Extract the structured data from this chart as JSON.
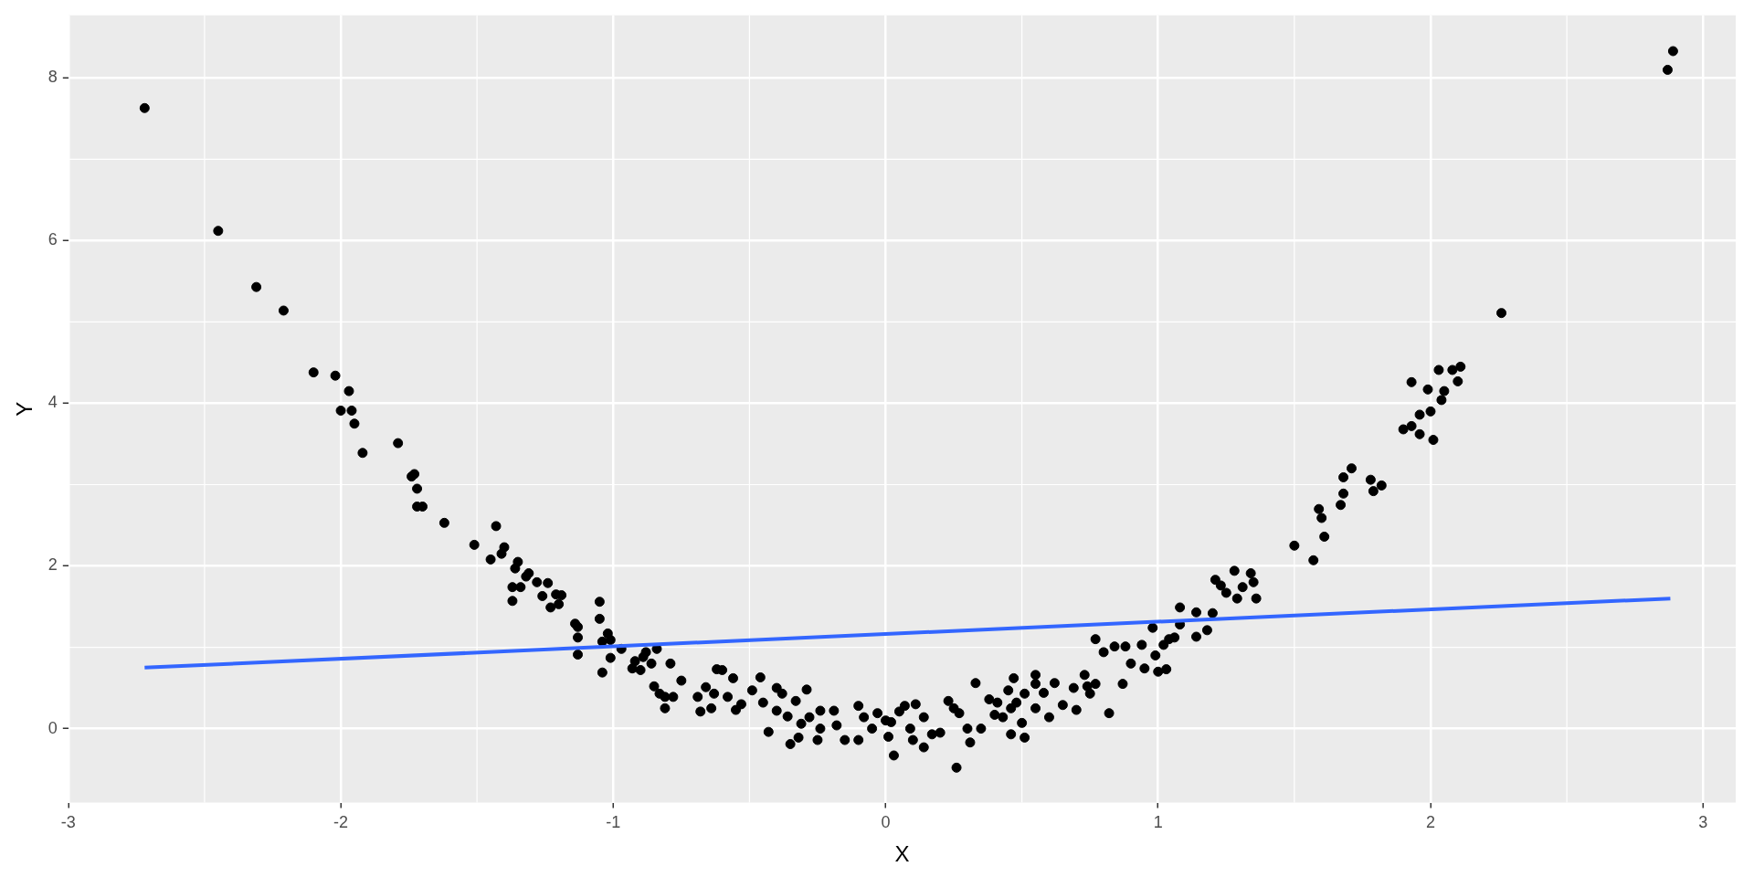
{
  "chart_data": {
    "type": "scatter",
    "xlabel": "X",
    "ylabel": "Y",
    "xlim": [
      -3.0,
      3.12
    ],
    "ylim": [
      -0.91,
      8.77
    ],
    "xticks": [
      -3,
      -2,
      -1,
      0,
      1,
      2,
      3
    ],
    "yticks": [
      0,
      2,
      4,
      6,
      8
    ],
    "grid": true,
    "legend": false,
    "series": [
      {
        "marker": "circle",
        "color": "#000000",
        "x": [
          -2.72,
          -2.45,
          -2.31,
          -2.21,
          -2.1,
          -2.02,
          -2.0,
          -1.97,
          -1.96,
          -1.95,
          -1.92,
          -1.79,
          -1.74,
          -1.73,
          -1.72,
          -1.72,
          -1.7,
          -1.62,
          -1.51,
          -1.45,
          -1.43,
          -1.41,
          -1.4,
          -1.37,
          -1.37,
          -1.36,
          -1.35,
          -1.34,
          -1.32,
          -1.31,
          -1.28,
          -1.26,
          -1.24,
          -1.23,
          -1.21,
          -1.2,
          -1.19,
          -1.14,
          -1.13,
          -1.13,
          -1.13,
          -1.05,
          -1.05,
          -1.04,
          -1.04,
          -1.02,
          -1.01,
          -1.01,
          -0.97,
          -0.93,
          -0.92,
          -0.9,
          -0.89,
          -0.88,
          -0.86,
          -0.84,
          -0.85,
          -0.83,
          -0.81,
          -0.81,
          -0.79,
          -0.78,
          -0.75,
          -0.69,
          -0.68,
          -0.66,
          -0.64,
          -0.63,
          -0.62,
          -0.6,
          -0.58,
          -0.56,
          -0.55,
          -0.53,
          -0.49,
          -0.46,
          -0.45,
          -0.43,
          -0.4,
          -0.4,
          -0.38,
          -0.36,
          -0.35,
          -0.33,
          -0.32,
          -0.31,
          -0.29,
          -0.28,
          -0.25,
          -0.24,
          -0.24,
          -0.19,
          -0.18,
          -0.15,
          -0.1,
          -0.1,
          -0.08,
          -0.05,
          -0.03,
          0.0,
          0.01,
          0.02,
          0.03,
          0.05,
          0.07,
          0.09,
          0.1,
          0.11,
          0.14,
          0.14,
          0.17,
          0.2,
          0.23,
          0.25,
          0.26,
          0.27,
          0.3,
          0.31,
          0.33,
          0.35,
          0.38,
          0.4,
          0.41,
          0.43,
          0.45,
          0.46,
          0.47,
          0.46,
          0.48,
          0.5,
          0.51,
          0.51,
          0.55,
          0.55,
          0.55,
          0.58,
          0.6,
          0.62,
          0.65,
          0.69,
          0.7,
          0.73,
          0.74,
          0.75,
          0.77,
          0.77,
          0.8,
          0.82,
          0.84,
          0.87,
          0.88,
          0.9,
          0.94,
          0.95,
          0.98,
          0.99,
          1.0,
          1.02,
          1.03,
          1.04,
          1.06,
          1.08,
          1.08,
          1.14,
          1.14,
          1.18,
          1.2,
          1.21,
          1.23,
          1.25,
          1.28,
          1.29,
          1.31,
          1.34,
          1.35,
          1.36,
          1.5,
          1.57,
          1.59,
          1.6,
          1.61,
          1.67,
          1.68,
          1.68,
          1.71,
          1.78,
          1.79,
          1.82,
          1.9,
          1.93,
          1.93,
          1.96,
          1.96,
          1.99,
          2.0,
          2.01,
          2.03,
          2.04,
          2.05,
          2.08,
          2.1,
          2.11,
          2.26,
          2.87,
          2.89
        ],
        "values": [
          7.63,
          6.12,
          5.43,
          5.14,
          4.38,
          4.34,
          3.91,
          4.15,
          3.91,
          3.75,
          3.39,
          3.51,
          3.1,
          3.13,
          2.95,
          2.73,
          2.73,
          2.53,
          2.26,
          2.08,
          2.49,
          2.15,
          2.23,
          1.74,
          1.57,
          1.97,
          2.05,
          1.74,
          1.87,
          1.91,
          1.8,
          1.63,
          1.79,
          1.49,
          1.65,
          1.53,
          1.64,
          1.29,
          1.25,
          1.12,
          0.91,
          1.56,
          1.35,
          1.07,
          0.69,
          1.17,
          1.09,
          0.87,
          0.98,
          0.74,
          0.83,
          0.72,
          0.88,
          0.94,
          0.8,
          0.98,
          0.52,
          0.43,
          0.39,
          0.25,
          0.8,
          0.39,
          0.59,
          0.39,
          0.21,
          0.51,
          0.25,
          0.43,
          0.73,
          0.72,
          0.39,
          0.62,
          0.23,
          0.3,
          0.47,
          0.63,
          0.32,
          -0.04,
          0.5,
          0.22,
          0.43,
          0.15,
          -0.19,
          0.34,
          -0.11,
          0.06,
          0.48,
          0.14,
          -0.14,
          0.22,
          0.0,
          0.22,
          0.04,
          -0.14,
          -0.14,
          0.28,
          0.14,
          0.0,
          0.19,
          0.1,
          -0.1,
          0.08,
          -0.33,
          0.21,
          0.28,
          0.0,
          -0.14,
          0.3,
          0.14,
          -0.23,
          -0.07,
          -0.05,
          0.34,
          0.25,
          -0.48,
          0.19,
          0.0,
          -0.17,
          0.56,
          0.0,
          0.36,
          0.17,
          0.32,
          0.14,
          0.47,
          0.25,
          0.62,
          -0.07,
          0.32,
          0.07,
          -0.11,
          0.43,
          0.55,
          0.25,
          0.66,
          0.44,
          0.14,
          0.56,
          0.29,
          0.5,
          0.23,
          0.66,
          0.52,
          0.43,
          0.55,
          1.1,
          0.94,
          0.19,
          1.01,
          0.55,
          1.01,
          0.8,
          1.03,
          0.74,
          1.24,
          0.9,
          0.7,
          1.03,
          0.73,
          1.1,
          1.12,
          1.49,
          1.28,
          1.43,
          1.13,
          1.21,
          1.42,
          1.83,
          1.76,
          1.67,
          1.94,
          1.6,
          1.74,
          1.91,
          1.8,
          1.6,
          2.25,
          2.07,
          2.7,
          2.59,
          2.36,
          2.75,
          2.89,
          3.09,
          3.2,
          3.06,
          2.92,
          2.99,
          3.68,
          3.72,
          4.26,
          3.86,
          3.62,
          4.17,
          3.9,
          3.55,
          4.41,
          4.04,
          4.15,
          4.41,
          4.27,
          4.45,
          5.11,
          8.1,
          8.33
        ]
      },
      {
        "type": "line",
        "marker": "none",
        "color": "#3366ff",
        "x": [
          -2.72,
          2.88
        ],
        "values": [
          0.75,
          1.6
        ]
      }
    ]
  }
}
